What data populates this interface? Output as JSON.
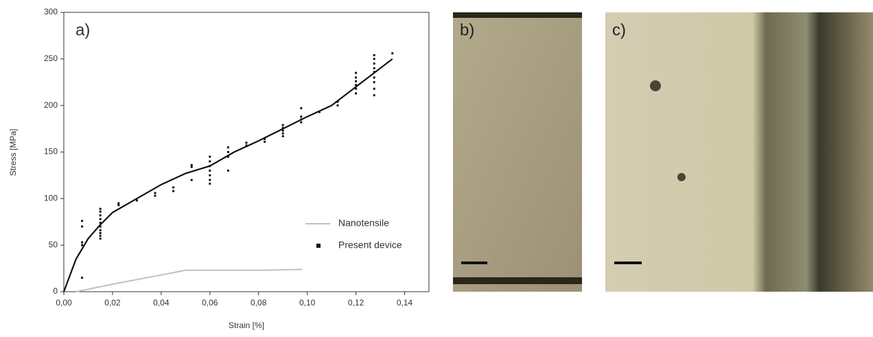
{
  "chart_data": {
    "type": "scatter",
    "panel_label": "a)",
    "x_label": "Strain [%]",
    "y_label": "Stress [MPa]",
    "xlim": [
      0,
      0.15
    ],
    "ylim": [
      0,
      300
    ],
    "xticks": [
      {
        "value": 0,
        "label": "0,00"
      },
      {
        "value": 0.02,
        "label": "0,02"
      },
      {
        "value": 0.04,
        "label": "0,04"
      },
      {
        "value": 0.06,
        "label": "0,06"
      },
      {
        "value": 0.08,
        "label": "0,08"
      },
      {
        "value": 0.1,
        "label": "0,10"
      },
      {
        "value": 0.12,
        "label": "0,12"
      },
      {
        "value": 0.14,
        "label": "0,14"
      }
    ],
    "yticks": [
      0,
      50,
      100,
      150,
      200,
      250,
      300
    ],
    "legend": "right",
    "series": [
      {
        "name": "Nanotensile",
        "type": "line",
        "color": "#c0c0c0",
        "x": [
          0.005,
          0.02,
          0.04,
          0.05,
          0.06,
          0.08,
          0.098
        ],
        "values": [
          0,
          8,
          18,
          23,
          23,
          23,
          24
        ]
      },
      {
        "name": "Present device",
        "type": "scatter",
        "color": "#111111",
        "x": [
          0.0075,
          0.0075,
          0.0075,
          0.0075,
          0.0075,
          0.015,
          0.015,
          0.015,
          0.015,
          0.015,
          0.015,
          0.015,
          0.015,
          0.015,
          0.015,
          0.0225,
          0.0225,
          0.03,
          0.0375,
          0.0375,
          0.045,
          0.045,
          0.0525,
          0.0525,
          0.0525,
          0.06,
          0.06,
          0.06,
          0.06,
          0.06,
          0.06,
          0.06,
          0.0675,
          0.0675,
          0.0675,
          0.0675,
          0.075,
          0.075,
          0.0825,
          0.0825,
          0.09,
          0.09,
          0.09,
          0.09,
          0.09,
          0.0975,
          0.0975,
          0.0975,
          0.0975,
          0.105,
          0.1125,
          0.1125,
          0.12,
          0.12,
          0.12,
          0.12,
          0.12,
          0.12,
          0.1275,
          0.1275,
          0.1275,
          0.1275,
          0.1275,
          0.1275,
          0.1275,
          0.1275,
          0.1275,
          0.135
        ],
        "values": [
          15,
          50,
          53,
          70,
          76,
          57,
          60,
          63,
          66,
          70,
          74,
          78,
          82,
          86,
          89,
          93,
          95,
          98,
          103,
          106,
          108,
          112,
          120,
          134,
          136,
          116,
          120,
          125,
          130,
          135,
          140,
          145,
          130,
          145,
          150,
          155,
          157,
          160,
          161,
          164,
          167,
          170,
          173,
          176,
          179,
          182,
          185,
          188,
          197,
          193,
          200,
          204,
          213,
          218,
          222,
          226,
          230,
          235,
          211,
          218,
          225,
          230,
          236,
          240,
          245,
          250,
          254,
          256
        ]
      },
      {
        "type": "line",
        "color": "#111111",
        "x": [
          0,
          0.005,
          0.01,
          0.015,
          0.02,
          0.03,
          0.04,
          0.05,
          0.06,
          0.07,
          0.08,
          0.09,
          0.1,
          0.11,
          0.12,
          0.135
        ],
        "values": [
          0,
          35,
          57,
          72,
          85,
          100,
          115,
          127,
          135,
          150,
          162,
          175,
          188,
          200,
          220,
          250
        ]
      }
    ]
  },
  "panels": [
    {
      "label": "b)"
    },
    {
      "label": "c)"
    }
  ]
}
